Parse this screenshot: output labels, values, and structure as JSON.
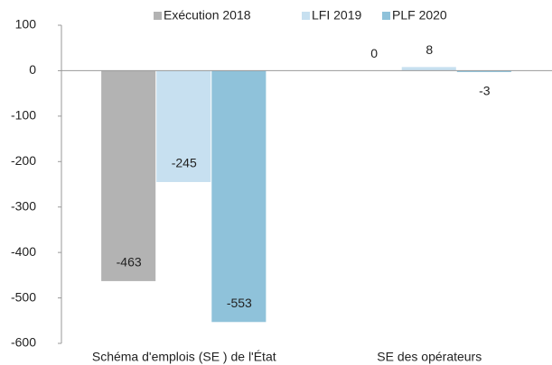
{
  "chart_data": {
    "type": "bar",
    "categories": [
      "Schéma d'emplois (SE ) de l'État",
      "SE des opérateurs"
    ],
    "series": [
      {
        "name": "Exécution 2018",
        "color": "#b3b3b3",
        "values": [
          -463,
          0
        ]
      },
      {
        "name": "LFI 2019",
        "color": "#c7e0f0",
        "values": [
          -245,
          8
        ]
      },
      {
        "name": "PLF 2020",
        "color": "#8fc2da",
        "values": [
          -553,
          -3
        ]
      }
    ],
    "ylim": [
      -600,
      100
    ],
    "yticks": [
      -600,
      -500,
      -400,
      -300,
      -200,
      -100,
      0,
      100
    ],
    "legend": "top"
  }
}
